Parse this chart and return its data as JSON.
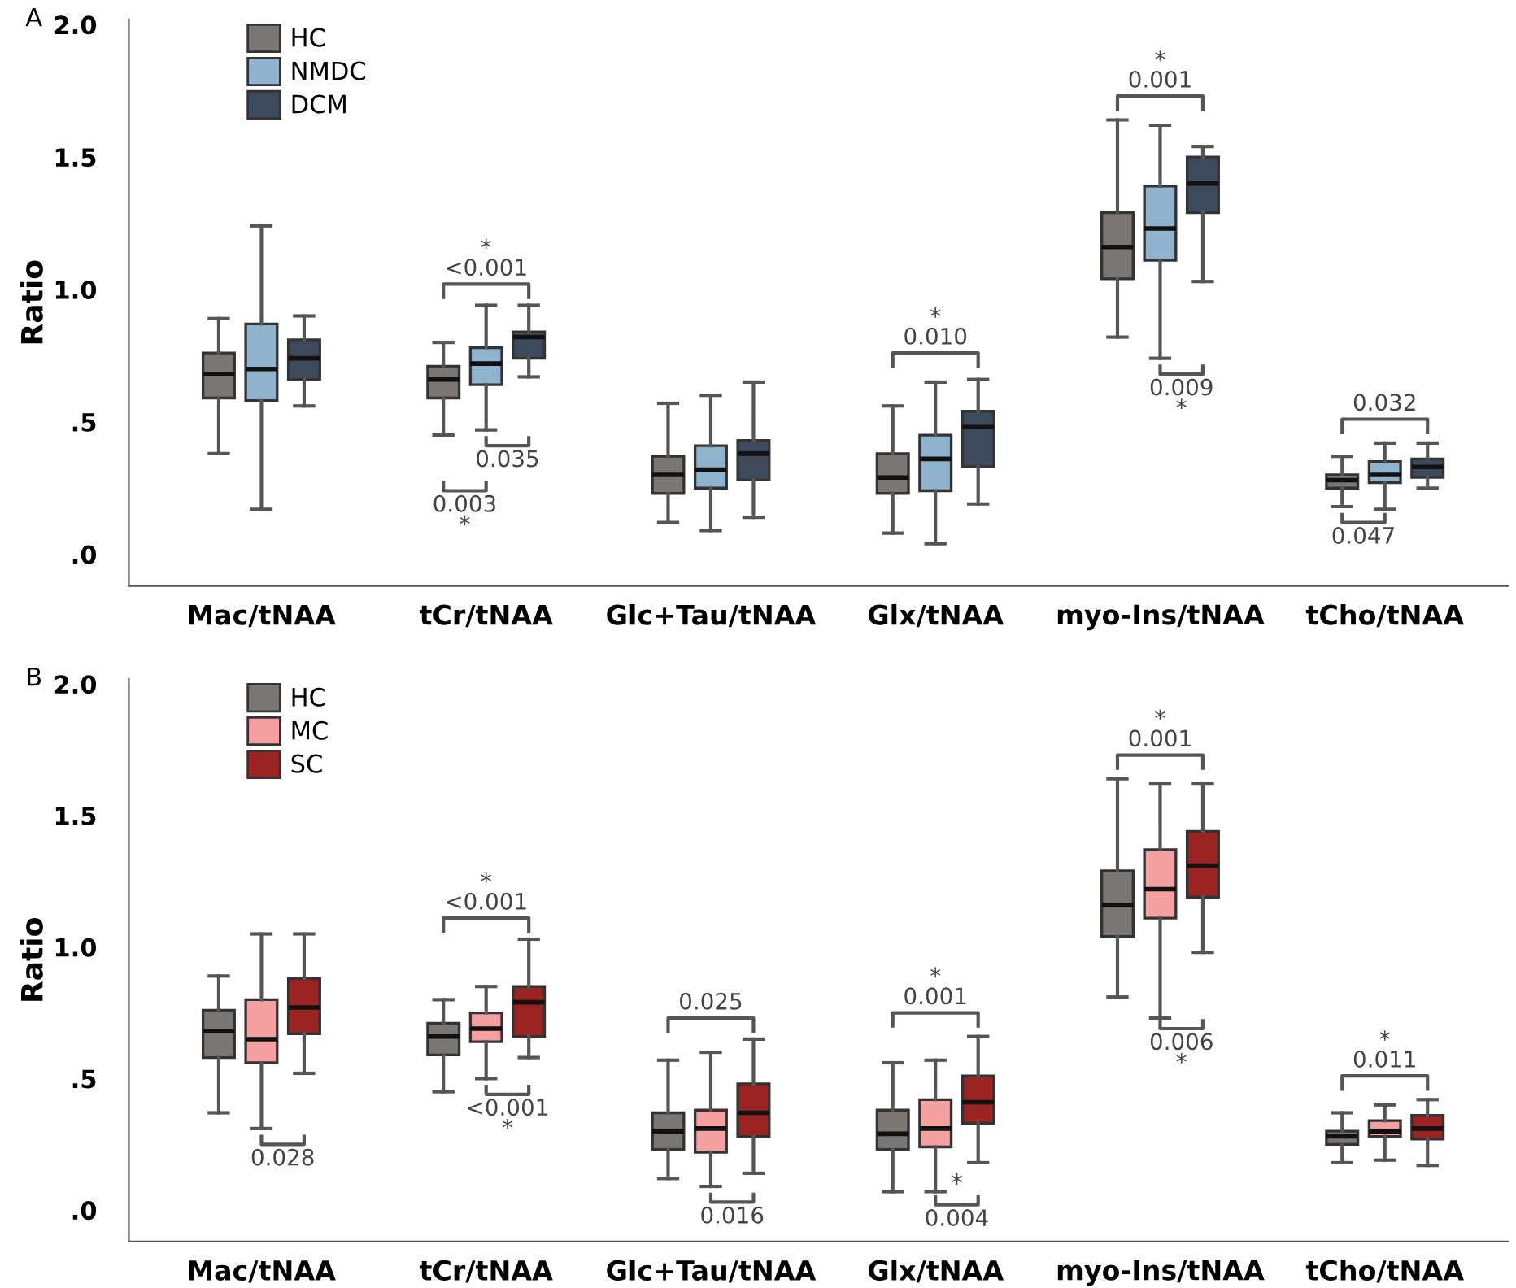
{
  "chart_data": [
    {
      "type": "box",
      "title": "A",
      "ylabel": "Ratio",
      "categories": [
        "Mac/tNAA",
        "tCr/tNAA",
        "Glc+Tau/tNAA",
        "Glx/tNAA",
        "myo-Ins/tNAA",
        "tCho/tNAA"
      ],
      "ylim": [
        -0.12,
        2.02
      ],
      "yticks": [
        {
          "value": 0,
          "label": ".0"
        },
        {
          "value": 0.5,
          "label": ".5"
        },
        {
          "value": 1.0,
          "label": "1.0"
        },
        {
          "value": 1.5,
          "label": "1.5"
        },
        {
          "value": 2.0,
          "label": "2.0"
        }
      ],
      "legend": "top left",
      "grid": false,
      "series": [
        {
          "name": "HC",
          "color": "#7a7674",
          "boxes": [
            {
              "low": 0.38,
              "q1": 0.59,
              "median": 0.68,
              "q3": 0.76,
              "high": 0.89
            },
            {
              "low": 0.45,
              "q1": 0.59,
              "median": 0.66,
              "q3": 0.71,
              "high": 0.8
            },
            {
              "low": 0.12,
              "q1": 0.23,
              "median": 0.3,
              "q3": 0.37,
              "high": 0.57
            },
            {
              "low": 0.08,
              "q1": 0.23,
              "median": 0.29,
              "q3": 0.38,
              "high": 0.56
            },
            {
              "low": 0.82,
              "q1": 1.04,
              "median": 1.16,
              "q3": 1.29,
              "high": 1.64
            },
            {
              "low": 0.18,
              "q1": 0.25,
              "median": 0.28,
              "q3": 0.3,
              "high": 0.37
            }
          ]
        },
        {
          "name": "NMDC",
          "color": "#8fb3cc",
          "boxes": [
            {
              "low": 0.17,
              "q1": 0.58,
              "median": 0.7,
              "q3": 0.87,
              "high": 1.24
            },
            {
              "low": 0.47,
              "q1": 0.64,
              "median": 0.72,
              "q3": 0.78,
              "high": 0.94
            },
            {
              "low": 0.09,
              "q1": 0.25,
              "median": 0.32,
              "q3": 0.41,
              "high": 0.6
            },
            {
              "low": 0.04,
              "q1": 0.24,
              "median": 0.36,
              "q3": 0.45,
              "high": 0.65
            },
            {
              "low": 0.74,
              "q1": 1.11,
              "median": 1.23,
              "q3": 1.39,
              "high": 1.62
            },
            {
              "low": 0.17,
              "q1": 0.27,
              "median": 0.3,
              "q3": 0.35,
              "high": 0.42
            }
          ]
        },
        {
          "name": "DCM",
          "color": "#3d4a5c",
          "boxes": [
            {
              "low": 0.56,
              "q1": 0.66,
              "median": 0.74,
              "q3": 0.81,
              "high": 0.9
            },
            {
              "low": 0.67,
              "q1": 0.74,
              "median": 0.82,
              "q3": 0.84,
              "high": 0.94
            },
            {
              "low": 0.14,
              "q1": 0.28,
              "median": 0.38,
              "q3": 0.43,
              "high": 0.65
            },
            {
              "low": 0.19,
              "q1": 0.33,
              "median": 0.48,
              "q3": 0.54,
              "high": 0.66
            },
            {
              "low": 1.03,
              "q1": 1.29,
              "median": 1.4,
              "q3": 1.5,
              "high": 1.54
            },
            {
              "low": 0.25,
              "q1": 0.29,
              "median": 0.33,
              "q3": 0.36,
              "high": 0.42
            }
          ]
        }
      ],
      "annotations": [
        "*\n<0.001",
        "0.035",
        "0.003\n*",
        "*\n0.010",
        "*\n0.001",
        "0.009\n*",
        "0.032",
        "0.047"
      ]
    },
    {
      "type": "box",
      "title": "B",
      "ylabel": "Ratio",
      "categories": [
        "Mac/tNAA",
        "tCr/tNAA",
        "Glc+Tau/tNAA",
        "Glx/tNAA",
        "myo-Ins/tNAA",
        "tCho/tNAA"
      ],
      "ylim": [
        -0.12,
        2.02
      ],
      "yticks": [
        {
          "value": 0,
          "label": ".0"
        },
        {
          "value": 0.5,
          "label": ".5"
        },
        {
          "value": 1.0,
          "label": "1.0"
        },
        {
          "value": 1.5,
          "label": "1.5"
        },
        {
          "value": 2.0,
          "label": "2.0"
        }
      ],
      "legend": "top left",
      "grid": false,
      "series": [
        {
          "name": "HC",
          "color": "#7a7674",
          "boxes": [
            {
              "low": 0.37,
              "q1": 0.58,
              "median": 0.68,
              "q3": 0.76,
              "high": 0.89
            },
            {
              "low": 0.45,
              "q1": 0.59,
              "median": 0.66,
              "q3": 0.71,
              "high": 0.8
            },
            {
              "low": 0.12,
              "q1": 0.23,
              "median": 0.3,
              "q3": 0.37,
              "high": 0.57
            },
            {
              "low": 0.07,
              "q1": 0.23,
              "median": 0.29,
              "q3": 0.38,
              "high": 0.56
            },
            {
              "low": 0.81,
              "q1": 1.04,
              "median": 1.16,
              "q3": 1.29,
              "high": 1.64
            },
            {
              "low": 0.18,
              "q1": 0.25,
              "median": 0.28,
              "q3": 0.3,
              "high": 0.37
            }
          ]
        },
        {
          "name": "MC",
          "color": "#f4a0a0",
          "boxes": [
            {
              "low": 0.31,
              "q1": 0.56,
              "median": 0.65,
              "q3": 0.8,
              "high": 1.05
            },
            {
              "low": 0.5,
              "q1": 0.64,
              "median": 0.69,
              "q3": 0.75,
              "high": 0.85
            },
            {
              "low": 0.09,
              "q1": 0.22,
              "median": 0.31,
              "q3": 0.38,
              "high": 0.6
            },
            {
              "low": 0.07,
              "q1": 0.24,
              "median": 0.31,
              "q3": 0.42,
              "high": 0.57
            },
            {
              "low": 0.73,
              "q1": 1.11,
              "median": 1.22,
              "q3": 1.37,
              "high": 1.62
            },
            {
              "low": 0.19,
              "q1": 0.28,
              "median": 0.3,
              "q3": 0.34,
              "high": 0.4
            }
          ]
        },
        {
          "name": "SC",
          "color": "#9b2423",
          "boxes": [
            {
              "low": 0.52,
              "q1": 0.67,
              "median": 0.77,
              "q3": 0.88,
              "high": 1.05
            },
            {
              "low": 0.58,
              "q1": 0.66,
              "median": 0.79,
              "q3": 0.85,
              "high": 1.03
            },
            {
              "low": 0.14,
              "q1": 0.28,
              "median": 0.37,
              "q3": 0.48,
              "high": 0.65
            },
            {
              "low": 0.18,
              "q1": 0.33,
              "median": 0.41,
              "q3": 0.51,
              "high": 0.66
            },
            {
              "low": 0.98,
              "q1": 1.19,
              "median": 1.31,
              "q3": 1.44,
              "high": 1.62
            },
            {
              "low": 0.17,
              "q1": 0.27,
              "median": 0.31,
              "q3": 0.36,
              "high": 0.42
            }
          ]
        }
      ],
      "annotations": [
        "0.028",
        "*\n<0.001",
        "<0.001\n*",
        "0.025",
        "0.016",
        "*\n0.001",
        "*",
        "0.004",
        "*\n0.001",
        "0.006\n*",
        "*\n0.011"
      ]
    }
  ]
}
